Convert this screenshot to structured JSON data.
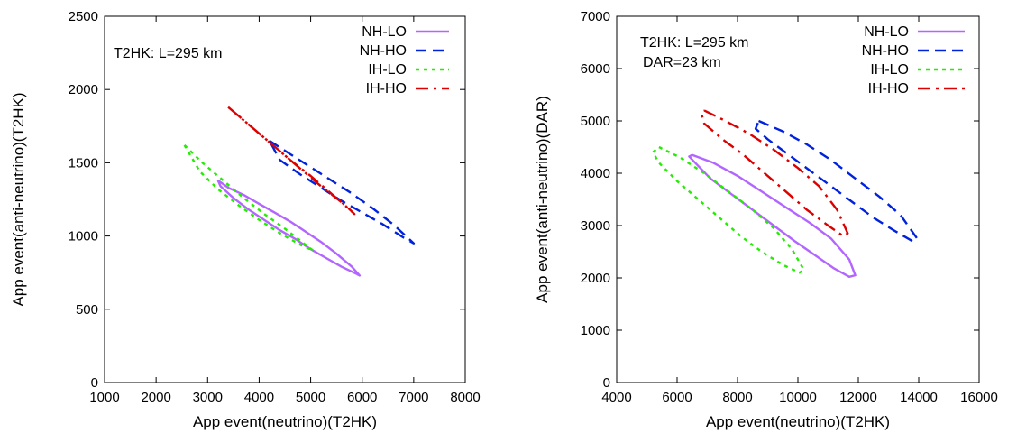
{
  "chart_data": [
    {
      "type": "line",
      "xlabel": "App event(neutrino)(T2HK)",
      "ylabel": "App event(anti-neutrino)(T2HK)",
      "xlim": [
        1000,
        8000
      ],
      "ylim": [
        0,
        2500
      ],
      "xticks": [
        1000,
        2000,
        3000,
        4000,
        5000,
        6000,
        7000,
        8000
      ],
      "yticks": [
        0,
        500,
        1000,
        1500,
        2000,
        2500
      ],
      "annotations": [
        "T2HK: L=295 km"
      ],
      "legend_position": "top-right",
      "grid": false,
      "series": [
        {
          "name": "NH-LO",
          "color": "#b266ff",
          "dash": "solid",
          "x": [
            3200,
            3400,
            3700,
            4000,
            4300,
            4600,
            4900,
            5200,
            5500,
            5800,
            5950,
            5900,
            5600,
            5300,
            5000,
            4700,
            4400,
            4100,
            3800,
            3500,
            3250,
            3200
          ],
          "y": [
            1380,
            1330,
            1280,
            1220,
            1160,
            1100,
            1030,
            960,
            880,
            790,
            730,
            740,
            790,
            850,
            910,
            980,
            1040,
            1110,
            1180,
            1260,
            1340,
            1380
          ]
        },
        {
          "name": "NH-HO",
          "color": "#0022dd",
          "dash": "dashed",
          "x": [
            4200,
            4600,
            5000,
            5400,
            5800,
            6200,
            6600,
            7000,
            6800,
            6400,
            6000,
            5600,
            5200,
            4800,
            4400,
            4200
          ],
          "y": [
            1650,
            1560,
            1470,
            1380,
            1290,
            1190,
            1080,
            950,
            990,
            1080,
            1160,
            1240,
            1330,
            1420,
            1520,
            1650
          ]
        },
        {
          "name": "IH-LO",
          "color": "#22ee00",
          "dash": "dotted",
          "x": [
            2550,
            2900,
            3300,
            3700,
            4100,
            4500,
            4900,
            5050,
            4800,
            4400,
            4000,
            3600,
            3200,
            2850,
            2550
          ],
          "y": [
            1620,
            1500,
            1380,
            1260,
            1150,
            1050,
            940,
            900,
            940,
            1020,
            1110,
            1210,
            1320,
            1440,
            1620
          ]
        },
        {
          "name": "IH-HO",
          "color": "#dd0000",
          "dash": "dashdot",
          "x": [
            3400,
            3800,
            4200,
            4600,
            5000,
            5400,
            5700,
            5850,
            5600,
            5200,
            4800,
            4400,
            4000,
            3600,
            3400
          ],
          "y": [
            1880,
            1760,
            1640,
            1520,
            1410,
            1290,
            1200,
            1150,
            1230,
            1340,
            1460,
            1580,
            1700,
            1820,
            1880
          ]
        }
      ]
    },
    {
      "type": "line",
      "xlabel": "App event(neutrino)(T2HK)",
      "ylabel": "App event(anti-neutrino)(DAR)",
      "xlim": [
        4000,
        16000
      ],
      "ylim": [
        0,
        7000
      ],
      "xticks": [
        4000,
        6000,
        8000,
        10000,
        12000,
        14000,
        16000
      ],
      "yticks": [
        0,
        1000,
        2000,
        3000,
        4000,
        5000,
        6000,
        7000
      ],
      "annotations": [
        "T2HK: L=295 km",
        "DAR=23 km"
      ],
      "legend_position": "top-right",
      "grid": false,
      "series": [
        {
          "name": "NH-LO",
          "color": "#b266ff",
          "dash": "solid",
          "x": [
            6500,
            7200,
            8000,
            8800,
            9600,
            10400,
            11100,
            11700,
            11900,
            11700,
            11200,
            10600,
            9900,
            9200,
            8500,
            7800,
            7100,
            6600,
            6400,
            6500
          ],
          "y": [
            4350,
            4200,
            3950,
            3650,
            3350,
            3050,
            2750,
            2350,
            2050,
            2020,
            2180,
            2420,
            2700,
            3000,
            3300,
            3600,
            3900,
            4200,
            4320,
            4350
          ]
        },
        {
          "name": "NH-HO",
          "color": "#0022dd",
          "dash": "dashed",
          "x": [
            8700,
            9500,
            10300,
            11100,
            11900,
            12700,
            13400,
            13950,
            13800,
            13200,
            12500,
            11800,
            11100,
            10400,
            9700,
            9000,
            8600,
            8700
          ],
          "y": [
            5000,
            4800,
            4550,
            4250,
            3900,
            3550,
            3200,
            2750,
            2700,
            2900,
            3150,
            3450,
            3750,
            4050,
            4350,
            4650,
            4850,
            5000
          ]
        },
        {
          "name": "IH-LO",
          "color": "#22ee00",
          "dash": "dotted",
          "x": [
            5400,
            6100,
            6900,
            7700,
            8500,
            9200,
            9800,
            10200,
            10050,
            9500,
            8800,
            8100,
            7400,
            6700,
            6000,
            5400,
            5200,
            5400
          ],
          "y": [
            4500,
            4300,
            4000,
            3650,
            3300,
            2950,
            2550,
            2150,
            2100,
            2250,
            2500,
            2800,
            3150,
            3500,
            3850,
            4200,
            4400,
            4500
          ]
        },
        {
          "name": "IH-HO",
          "color": "#dd0000",
          "dash": "dashdot",
          "x": [
            6900,
            7600,
            8400,
            9200,
            10000,
            10700,
            11300,
            11650,
            11500,
            11000,
            10300,
            9600,
            8900,
            8200,
            7500,
            6900,
            6800,
            6900
          ],
          "y": [
            5200,
            5000,
            4750,
            4450,
            4100,
            3750,
            3300,
            2850,
            2800,
            3000,
            3300,
            3650,
            4000,
            4350,
            4650,
            4950,
            5150,
            5200
          ]
        }
      ]
    }
  ]
}
